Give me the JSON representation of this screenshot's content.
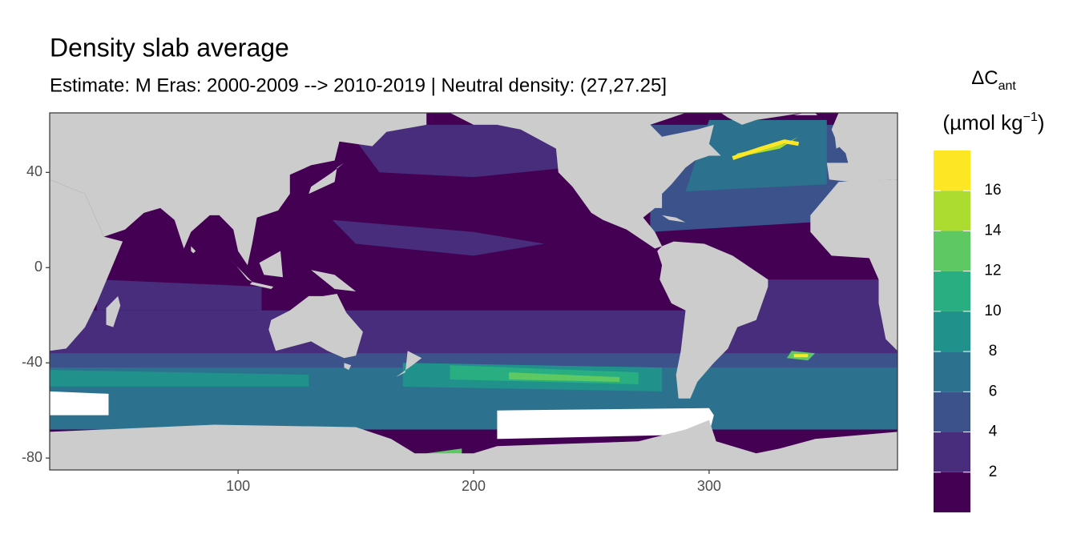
{
  "chart_data": {
    "type": "map",
    "title": "Density slab average",
    "subtitle": "Estimate: M Eras: 2000-2009 --> 2010-2019 | Neutral density: (27,27.25]",
    "xlim": [
      20,
      380
    ],
    "ylim": [
      -85,
      65
    ],
    "xticks": [
      100,
      200,
      300
    ],
    "yticks": [
      40,
      0,
      -40,
      -80
    ],
    "legend": {
      "title": {
        "symbol": "ΔC",
        "subscript": "ant",
        "unit": "(µmol kg",
        "superscript": "−1",
        "unit_end": ")"
      },
      "breaks": [
        0,
        2,
        4,
        6,
        8,
        10,
        12,
        14,
        16,
        18
      ],
      "ticks": [
        2,
        4,
        6,
        8,
        10,
        12,
        14,
        16
      ],
      "colors": [
        "#440154",
        "#472d7b",
        "#3b528b",
        "#2c728e",
        "#21918c",
        "#28ae80",
        "#5ec962",
        "#addc30",
        "#fde725"
      ]
    }
  }
}
